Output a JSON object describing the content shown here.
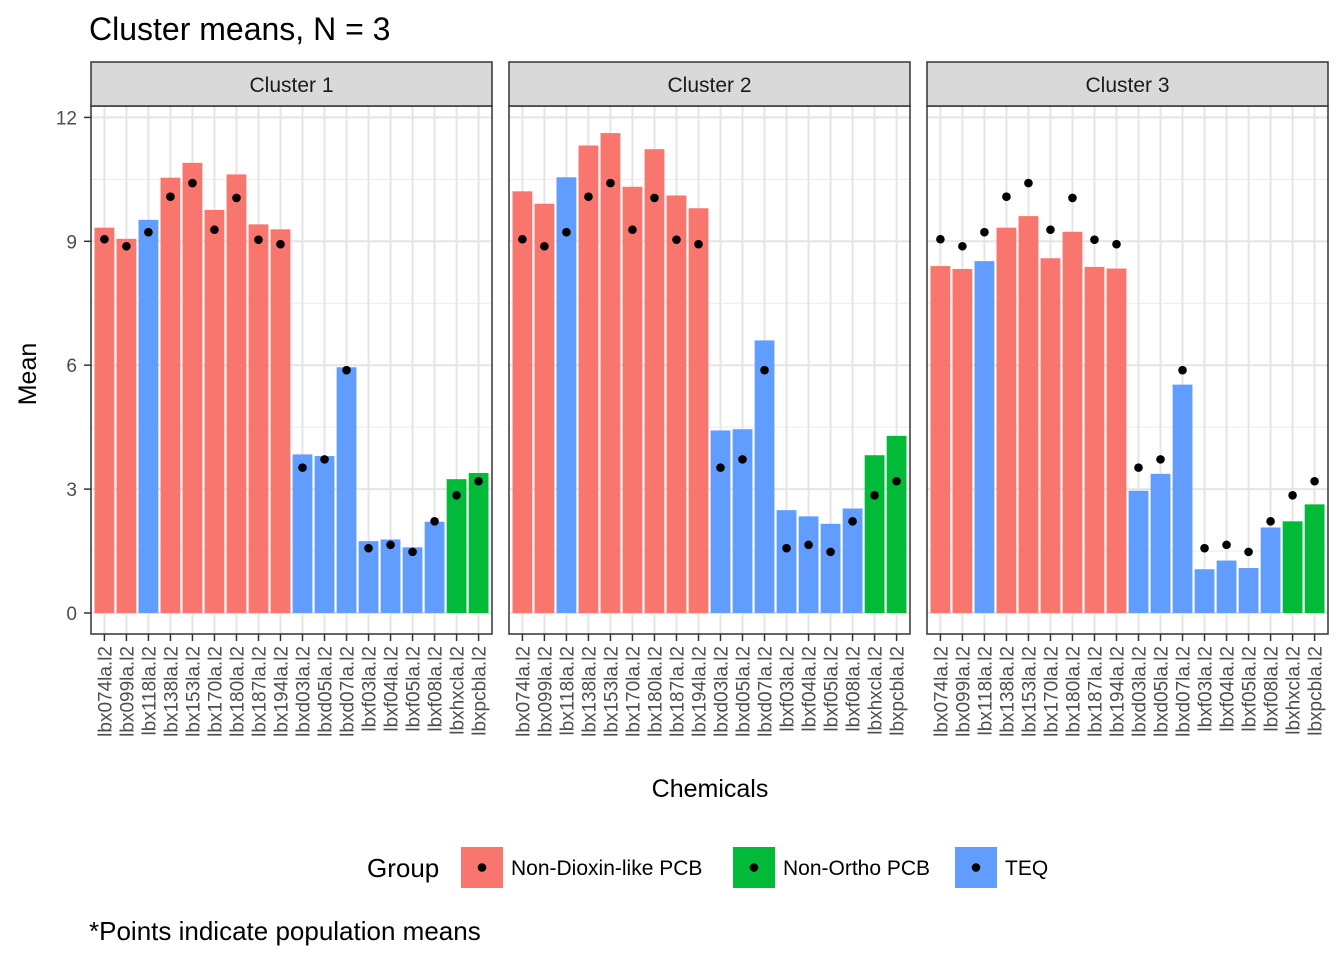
{
  "chart_data": {
    "type": "bar",
    "title": "Cluster means, N = 3",
    "xlabel": "Chemicals",
    "ylabel": "Mean",
    "ylim": [
      0,
      12
    ],
    "yticks": [
      0,
      3,
      6,
      9,
      12
    ],
    "grid": true,
    "legend_position": "bottom",
    "legend_title": "Group",
    "caption": "*Points indicate population means",
    "categories": [
      "lbx074la.l2",
      "lbx099la.l2",
      "lbx118la.l2",
      "lbx138la.l2",
      "lbx153la.l2",
      "lbx170la.l2",
      "lbx180la.l2",
      "lbx187la.l2",
      "lbx194la.l2",
      "lbxd03la.l2",
      "lbxd05la.l2",
      "lbxd07la.l2",
      "lbxf03la.l2",
      "lbxf04la.l2",
      "lbxf05la.l2",
      "lbxf08la.l2",
      "lbxhxcla.l2",
      "lbxpcbla.l2"
    ],
    "category_groups": [
      "Non-Dioxin-like PCB",
      "Non-Dioxin-like PCB",
      "TEQ",
      "Non-Dioxin-like PCB",
      "Non-Dioxin-like PCB",
      "Non-Dioxin-like PCB",
      "Non-Dioxin-like PCB",
      "Non-Dioxin-like PCB",
      "Non-Dioxin-like PCB",
      "TEQ",
      "TEQ",
      "TEQ",
      "TEQ",
      "TEQ",
      "TEQ",
      "TEQ",
      "Non-Ortho PCB",
      "Non-Ortho PCB"
    ],
    "groups": [
      {
        "name": "Non-Dioxin-like PCB",
        "color": "#F8766D"
      },
      {
        "name": "Non-Ortho PCB",
        "color": "#00BA38"
      },
      {
        "name": "TEQ",
        "color": "#619CFF"
      }
    ],
    "population_means": [
      9.05,
      8.88,
      9.22,
      10.08,
      10.41,
      9.28,
      10.05,
      9.04,
      8.93,
      3.52,
      3.72,
      5.88,
      1.57,
      1.65,
      1.48,
      2.22,
      2.85,
      3.19
    ],
    "panels": [
      {
        "label": "Cluster 1",
        "values": [
          9.33,
          9.06,
          9.52,
          10.54,
          10.9,
          9.76,
          10.62,
          9.41,
          9.29,
          3.84,
          3.8,
          5.95,
          1.74,
          1.78,
          1.59,
          2.21,
          3.24,
          3.39
        ]
      },
      {
        "label": "Cluster 2",
        "values": [
          10.21,
          9.91,
          10.55,
          11.32,
          11.62,
          10.32,
          11.23,
          10.11,
          9.8,
          4.42,
          4.45,
          6.6,
          2.49,
          2.34,
          2.16,
          2.53,
          3.82,
          4.29
        ]
      },
      {
        "label": "Cluster 3",
        "values": [
          8.4,
          8.33,
          8.52,
          9.33,
          9.61,
          8.59,
          9.23,
          8.38,
          8.34,
          2.96,
          3.37,
          5.53,
          1.06,
          1.27,
          1.09,
          2.07,
          2.22,
          2.63
        ]
      }
    ]
  }
}
